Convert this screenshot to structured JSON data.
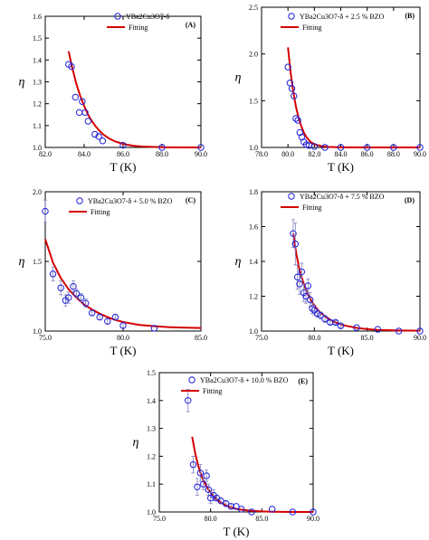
{
  "colors": {
    "marker": "#1f1fd8",
    "error_bar": "#8080c0",
    "fit": "#d40000",
    "axis": "#000000",
    "background": "#ffffff"
  },
  "chart_data": [
    {
      "panel": "(A)",
      "type": "scatter",
      "xlabel": "T (K)",
      "ylabel": "η",
      "xlim": [
        82.0,
        90.0
      ],
      "ylim": [
        1.0,
        1.6
      ],
      "xticks": [
        82.0,
        84.0,
        86.0,
        88.0,
        90.0
      ],
      "xtick_labels": [
        "82.0",
        "84.0",
        "86.0",
        "88.0",
        "90.0"
      ],
      "yticks": [
        1.0,
        1.1,
        1.2,
        1.3,
        1.4,
        1.5,
        1.6
      ],
      "ytick_labels": [
        "1.0",
        "1.1",
        "1.2",
        "1.3",
        "1.4",
        "1.5",
        "1.6"
      ],
      "grid": false,
      "legend_position": "top-center",
      "series": [
        {
          "name": "YBa2Cu3O7-δ",
          "kind": "scatter",
          "x": [
            83.2,
            83.35,
            83.55,
            83.75,
            83.9,
            84.05,
            84.2,
            84.55,
            84.75,
            84.95,
            86.0,
            88.0,
            90.0
          ],
          "y": [
            1.38,
            1.37,
            1.23,
            1.16,
            1.21,
            1.16,
            1.12,
            1.06,
            1.05,
            1.03,
            1.01,
            1.0,
            1.0
          ],
          "yerr": [
            0,
            0,
            0,
            0,
            0,
            0,
            0,
            0,
            0,
            0,
            0,
            0,
            0
          ]
        },
        {
          "name": "Fitting",
          "kind": "line",
          "x": [
            83.2,
            83.4,
            83.6,
            83.8,
            84.0,
            84.2,
            84.4,
            84.6,
            84.8,
            85.0,
            85.3,
            85.6,
            86.0,
            86.5,
            87.0,
            88.0,
            89.0,
            90.0
          ],
          "y": [
            1.44,
            1.36,
            1.29,
            1.235,
            1.19,
            1.15,
            1.12,
            1.095,
            1.075,
            1.058,
            1.04,
            1.027,
            1.016,
            1.008,
            1.004,
            1.001,
            1.0,
            1.0
          ]
        }
      ]
    },
    {
      "panel": "(B)",
      "type": "scatter",
      "xlabel": "T (K)",
      "ylabel": "η",
      "xlim": [
        78.0,
        90.0
      ],
      "ylim": [
        1.0,
        2.5
      ],
      "xticks": [
        78.0,
        80.0,
        82.0,
        84.0,
        86.0,
        88.0,
        90.0
      ],
      "xtick_labels": [
        "78.0",
        "80.0",
        "82.0",
        "84.0",
        "86.0",
        "88.0",
        "90.0"
      ],
      "yticks": [
        1.0,
        1.5,
        2.0,
        2.5
      ],
      "ytick_labels": [
        "1.0",
        "1.5",
        "2.0",
        "2.5"
      ],
      "grid": false,
      "legend_position": "top-center",
      "series": [
        {
          "name": "YBa2Cu3O7-δ + 2.5 % BZO",
          "kind": "scatter",
          "x": [
            80.0,
            80.15,
            80.3,
            80.45,
            80.6,
            80.75,
            80.9,
            81.05,
            81.2,
            81.4,
            81.6,
            82.0,
            82.8,
            84.0,
            86.0,
            88.0,
            90.0
          ],
          "y": [
            1.86,
            1.69,
            1.63,
            1.55,
            1.31,
            1.29,
            1.16,
            1.11,
            1.06,
            1.03,
            1.02,
            1.01,
            1.0,
            1.0,
            1.0,
            1.0,
            1.0
          ],
          "yerr": [
            0,
            0,
            0,
            0,
            0,
            0,
            0,
            0,
            0,
            0,
            0,
            0,
            0,
            0,
            0,
            0,
            0
          ]
        },
        {
          "name": "Fitting",
          "kind": "line",
          "x": [
            80.0,
            80.2,
            80.4,
            80.6,
            80.8,
            81.0,
            81.2,
            81.4,
            81.7,
            82.0,
            82.5,
            83.0,
            84.0,
            86.0,
            88.0,
            90.0
          ],
          "y": [
            2.07,
            1.8,
            1.6,
            1.44,
            1.32,
            1.23,
            1.16,
            1.11,
            1.06,
            1.035,
            1.015,
            1.006,
            1.001,
            1.0,
            1.0,
            1.0
          ]
        }
      ]
    },
    {
      "panel": "(C)",
      "type": "scatter",
      "xlabel": "T (K)",
      "ylabel": "η",
      "xlim": [
        75.0,
        85.0
      ],
      "ylim": [
        1.0,
        2.0
      ],
      "xticks": [
        75.0,
        80.0,
        85.0
      ],
      "xtick_labels": [
        "75.0",
        "80.0",
        "85.0"
      ],
      "yticks": [
        1.0,
        1.5,
        2.0
      ],
      "ytick_labels": [
        "1.0",
        "1.5",
        "2.0"
      ],
      "grid": false,
      "legend_position": "top-center",
      "series": [
        {
          "name": "YBa2Cu3O7-δ + 5.0 % BZO",
          "kind": "scatter",
          "x": [
            75.0,
            75.5,
            76.0,
            76.3,
            76.5,
            76.8,
            77.0,
            77.3,
            77.6,
            78.0,
            78.5,
            79.0,
            79.5,
            80.0,
            82.0
          ],
          "y": [
            1.86,
            1.41,
            1.31,
            1.22,
            1.24,
            1.32,
            1.27,
            1.24,
            1.2,
            1.13,
            1.1,
            1.07,
            1.1,
            1.04,
            1.02
          ],
          "yerr": [
            0.08,
            0.05,
            0.05,
            0.04,
            0.04,
            0.04,
            0.03,
            0.03,
            0.03,
            0.02,
            0.02,
            0.02,
            0.02,
            0.02,
            0
          ]
        },
        {
          "name": "Fitting",
          "kind": "line",
          "x": [
            75.0,
            75.5,
            76.0,
            76.5,
            77.0,
            77.5,
            78.0,
            78.5,
            79.0,
            79.5,
            80.0,
            81.0,
            82.0,
            83.0,
            84.0,
            85.0
          ],
          "y": [
            1.66,
            1.49,
            1.38,
            1.3,
            1.24,
            1.19,
            1.155,
            1.125,
            1.1,
            1.08,
            1.065,
            1.045,
            1.035,
            1.028,
            1.024,
            1.022
          ]
        }
      ]
    },
    {
      "panel": "(D)",
      "type": "scatter",
      "xlabel": "T (K)",
      "ylabel": "η",
      "xlim": [
        75.0,
        90.0
      ],
      "ylim": [
        1.0,
        1.8
      ],
      "xticks": [
        75.0,
        80.0,
        85.0,
        90.0
      ],
      "xtick_labels": [
        "75.0",
        "80.0",
        "85.0",
        "90.0"
      ],
      "yticks": [
        1.0,
        1.2,
        1.4,
        1.6,
        1.8
      ],
      "ytick_labels": [
        "1.0",
        "1.2",
        "1.4",
        "1.6",
        "1.8"
      ],
      "grid": false,
      "legend_position": "top-center",
      "series": [
        {
          "name": "YBa2Cu3O7-δ + 7.5 % BZO",
          "kind": "scatter",
          "x": [
            78.0,
            78.2,
            78.4,
            78.6,
            78.8,
            79.0,
            79.2,
            79.4,
            79.6,
            79.8,
            80.0,
            80.3,
            80.6,
            81.0,
            81.5,
            82.0,
            82.5,
            84.0,
            86.0,
            88.0,
            90.0
          ],
          "y": [
            1.56,
            1.5,
            1.31,
            1.27,
            1.34,
            1.22,
            1.2,
            1.26,
            1.18,
            1.13,
            1.12,
            1.1,
            1.09,
            1.07,
            1.05,
            1.05,
            1.03,
            1.02,
            1.01,
            1.0,
            1.0
          ],
          "yerr": [
            0.08,
            0.12,
            0.07,
            0.06,
            0.05,
            0.05,
            0.04,
            0.04,
            0.04,
            0.03,
            0.03,
            0.02,
            0.02,
            0.02,
            0.01,
            0.01,
            0.01,
            0,
            0,
            0,
            0
          ]
        },
        {
          "name": "Fitting",
          "kind": "line",
          "x": [
            78.0,
            78.3,
            78.6,
            79.0,
            79.4,
            79.8,
            80.2,
            80.6,
            81.0,
            81.5,
            82.0,
            82.5,
            83.0,
            84.0,
            85.0,
            86.0,
            88.0,
            90.0
          ],
          "y": [
            1.56,
            1.44,
            1.35,
            1.27,
            1.21,
            1.165,
            1.13,
            1.105,
            1.085,
            1.065,
            1.05,
            1.038,
            1.03,
            1.018,
            1.011,
            1.007,
            1.003,
            1.002
          ]
        }
      ]
    },
    {
      "panel": "(E)",
      "type": "scatter",
      "xlabel": "T (K)",
      "ylabel": "η",
      "xlim": [
        75.0,
        90.0
      ],
      "ylim": [
        1.0,
        1.5
      ],
      "xticks": [
        75.0,
        80.0,
        85.0,
        90.0
      ],
      "xtick_labels": [
        "75.0",
        "80.0",
        "85.0",
        "90.0"
      ],
      "yticks": [
        1.0,
        1.1,
        1.2,
        1.3,
        1.4,
        1.5
      ],
      "ytick_labels": [
        "1.0",
        "1.1",
        "1.2",
        "1.3",
        "1.4",
        "1.5"
      ],
      "grid": false,
      "legend_position": "top-center",
      "series": [
        {
          "name": "YBa2Cu3O7-δ + 10.0 % BZO",
          "kind": "scatter",
          "x": [
            77.8,
            78.3,
            78.7,
            79.0,
            79.3,
            79.6,
            79.8,
            80.0,
            80.3,
            80.6,
            81.0,
            81.5,
            82.0,
            82.5,
            83.0,
            84.0,
            86.0,
            88.0,
            90.0
          ],
          "y": [
            1.4,
            1.17,
            1.09,
            1.14,
            1.1,
            1.13,
            1.08,
            1.05,
            1.06,
            1.05,
            1.04,
            1.03,
            1.02,
            1.02,
            1.01,
            1.0,
            1.01,
            1.0,
            1.0
          ],
          "yerr": [
            0.04,
            0.03,
            0.03,
            0.03,
            0.02,
            0.02,
            0.02,
            0.02,
            0.02,
            0.01,
            0.01,
            0.01,
            0.01,
            0,
            0,
            0,
            0,
            0,
            0
          ]
        },
        {
          "name": "Fitting",
          "kind": "line",
          "x": [
            78.2,
            78.5,
            78.8,
            79.1,
            79.4,
            79.8,
            80.2,
            80.6,
            81.0,
            81.5,
            82.0,
            82.5,
            83.0,
            84.0,
            85.0,
            86.0,
            88.0,
            90.0
          ],
          "y": [
            1.27,
            1.21,
            1.165,
            1.13,
            1.105,
            1.08,
            1.06,
            1.045,
            1.034,
            1.024,
            1.016,
            1.011,
            1.008,
            1.004,
            1.002,
            1.001,
            1.0,
            1.0
          ]
        }
      ]
    }
  ]
}
